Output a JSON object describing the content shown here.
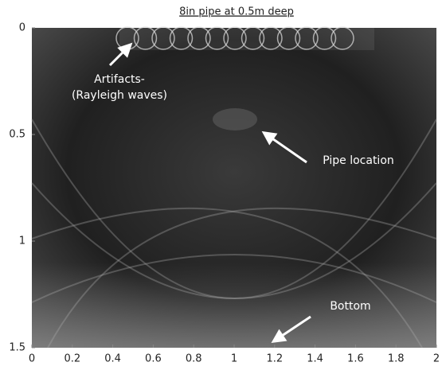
{
  "chart_data": {
    "type": "image",
    "title": "8in pipe at 0.5m deep",
    "xlim": [
      0,
      2
    ],
    "xticks": [
      0,
      0.2,
      0.4,
      0.6,
      0.8,
      1,
      1.2,
      1.4,
      1.6,
      1.8,
      2
    ],
    "ylim": [
      0,
      1.5
    ],
    "yticks": [
      0,
      0.5,
      1,
      1.5
    ],
    "y_reversed": true,
    "colormap": "gray",
    "annotations": [
      "Artifacts-",
      "(Rayleigh waves)",
      "Pipe location",
      "Bottom"
    ]
  }
}
